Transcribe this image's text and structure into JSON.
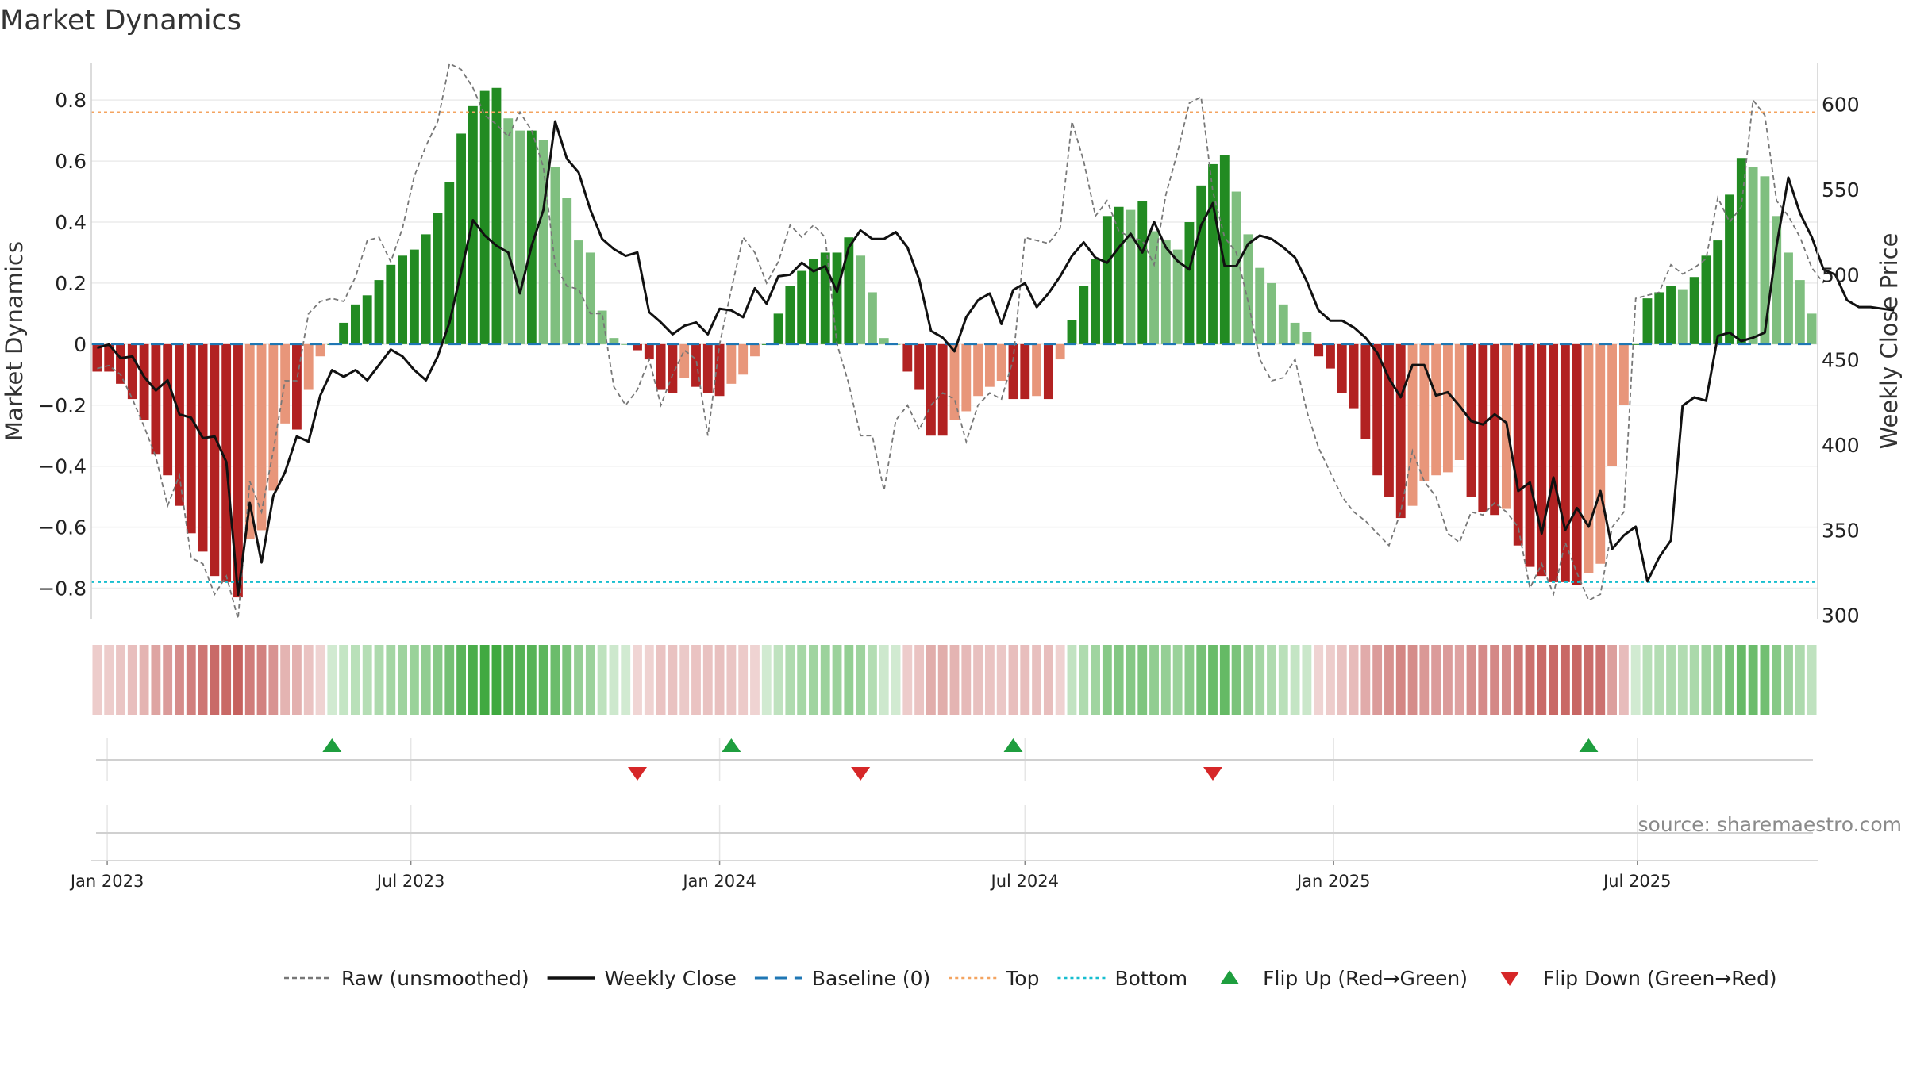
{
  "chart_data": {
    "type": "bar",
    "title": "Market Dynamics",
    "ylabel": "Market Dynamics",
    "y2label": "Weekly Close Price",
    "ylim": [
      -0.9,
      0.92
    ],
    "y2lim": [
      298,
      624
    ],
    "yticks": [
      -0.8,
      -0.6,
      -0.4,
      -0.2,
      0,
      0.2,
      0.4,
      0.6,
      0.8
    ],
    "yticklabels": [
      "−0.8",
      "−0.6",
      "−0.4",
      "−0.2",
      "0",
      "0.2",
      "0.4",
      "0.6",
      "0.8"
    ],
    "y2ticks": [
      300,
      350,
      400,
      450,
      500,
      550,
      600
    ],
    "y2ticklabels": [
      "300",
      "350",
      "400",
      "450",
      "500",
      "550",
      "600"
    ],
    "x_start": "2022-12-26",
    "x_step_days": 7,
    "xticks": [
      "2023-01-01",
      "2023-07-01",
      "2024-01-01",
      "2024-07-01",
      "2025-01-01",
      "2025-07-01"
    ],
    "xticklabels": [
      "Jan 2023",
      "Jul 2023",
      "Jan 2024",
      "Jul 2024",
      "Jan 2025",
      "Jul 2025"
    ],
    "grid": true,
    "legend_position": "bottom-center",
    "baseline": 0,
    "top_level": 0.76,
    "bottom_level": -0.78,
    "colors": {
      "red_dark": "#b22222",
      "red_light": "#e8967a",
      "green_dark": "#228b22",
      "green_light": "#7fbf7f",
      "close": "#111111",
      "raw": "#777777",
      "baseline": "#1f77b4",
      "top": "#f4a460",
      "bottom": "#17becf",
      "flip_up": "#1e9e3e",
      "flip_down": "#d62728",
      "regime_red": "#c0504d",
      "regime_green": "#2ca02c"
    },
    "series": [
      {
        "name": "Market Dynamics",
        "values": [
          -0.09,
          -0.09,
          -0.13,
          -0.18,
          -0.25,
          -0.36,
          -0.43,
          -0.53,
          -0.62,
          -0.68,
          -0.76,
          -0.78,
          -0.83,
          -0.64,
          -0.61,
          -0.48,
          -0.26,
          -0.28,
          -0.15,
          -0.04,
          0.0,
          0.07,
          0.13,
          0.16,
          0.21,
          0.26,
          0.29,
          0.31,
          0.36,
          0.43,
          0.53,
          0.69,
          0.78,
          0.83,
          0.84,
          0.74,
          0.7,
          0.7,
          0.67,
          0.58,
          0.48,
          0.34,
          0.3,
          0.11,
          0.02,
          0.0,
          -0.02,
          -0.05,
          -0.15,
          -0.16,
          -0.11,
          -0.14,
          -0.16,
          -0.17,
          -0.13,
          -0.1,
          -0.04,
          0.0,
          0.1,
          0.19,
          0.24,
          0.28,
          0.3,
          0.3,
          0.35,
          0.29,
          0.17,
          0.02,
          0.0,
          -0.09,
          -0.15,
          -0.3,
          -0.3,
          -0.25,
          -0.22,
          -0.17,
          -0.14,
          -0.12,
          -0.18,
          -0.18,
          -0.17,
          -0.18,
          -0.05,
          0.08,
          0.19,
          0.28,
          0.42,
          0.45,
          0.44,
          0.47,
          0.37,
          0.34,
          0.31,
          0.4,
          0.52,
          0.59,
          0.62,
          0.5,
          0.36,
          0.25,
          0.2,
          0.13,
          0.07,
          0.04,
          -0.04,
          -0.08,
          -0.16,
          -0.21,
          -0.31,
          -0.43,
          -0.5,
          -0.57,
          -0.53,
          -0.45,
          -0.43,
          -0.42,
          -0.38,
          -0.5,
          -0.55,
          -0.56,
          -0.54,
          -0.66,
          -0.73,
          -0.76,
          -0.78,
          -0.78,
          -0.79,
          -0.75,
          -0.72,
          -0.4,
          -0.2,
          0.0,
          0.15,
          0.17,
          0.19,
          0.18,
          0.22,
          0.29,
          0.34,
          0.49,
          0.61,
          0.58,
          0.55,
          0.42,
          0.3,
          0.21,
          0.1
        ]
      },
      {
        "name": "Raw (unsmoothed)",
        "values": [
          -0.08,
          -0.07,
          -0.1,
          -0.18,
          -0.27,
          -0.37,
          -0.53,
          -0.43,
          -0.7,
          -0.72,
          -0.82,
          -0.76,
          -0.9,
          -0.45,
          -0.55,
          -0.35,
          -0.12,
          -0.12,
          0.1,
          0.14,
          0.15,
          0.14,
          0.22,
          0.34,
          0.35,
          0.27,
          0.38,
          0.55,
          0.65,
          0.73,
          0.92,
          0.9,
          0.84,
          0.75,
          0.72,
          0.68,
          0.76,
          0.7,
          0.58,
          0.26,
          0.19,
          0.18,
          0.1,
          0.1,
          -0.14,
          -0.2,
          -0.15,
          -0.05,
          -0.2,
          -0.1,
          -0.02,
          -0.05,
          -0.3,
          0.0,
          0.18,
          0.35,
          0.3,
          0.2,
          0.27,
          0.39,
          0.35,
          0.39,
          0.35,
          0.0,
          -0.13,
          -0.3,
          -0.3,
          -0.48,
          -0.25,
          -0.2,
          -0.28,
          -0.2,
          -0.16,
          -0.18,
          -0.32,
          -0.2,
          -0.16,
          -0.18,
          -0.05,
          0.35,
          0.34,
          0.33,
          0.38,
          0.73,
          0.6,
          0.42,
          0.47,
          0.37,
          0.35,
          0.34,
          0.26,
          0.49,
          0.63,
          0.79,
          0.81,
          0.5,
          0.35,
          0.3,
          0.14,
          -0.05,
          -0.12,
          -0.11,
          -0.05,
          -0.22,
          -0.34,
          -0.42,
          -0.5,
          -0.55,
          -0.58,
          -0.62,
          -0.66,
          -0.55,
          -0.35,
          -0.45,
          -0.5,
          -0.62,
          -0.65,
          -0.55,
          -0.56,
          -0.52,
          -0.55,
          -0.6,
          -0.8,
          -0.72,
          -0.82,
          -0.65,
          -0.75,
          -0.84,
          -0.82,
          -0.6,
          -0.55,
          0.15,
          0.16,
          0.17,
          0.26,
          0.23,
          0.25,
          0.28,
          0.48,
          0.4,
          0.45,
          0.8,
          0.75,
          0.47,
          0.42,
          0.35,
          0.25,
          0.2
        ]
      },
      {
        "name": "Weekly Close",
        "values": [
          457,
          459,
          451,
          452,
          440,
          432,
          438,
          418,
          416,
          404,
          405,
          390,
          312,
          366,
          331,
          370,
          384,
          405,
          402,
          429,
          444,
          440,
          444,
          438,
          447,
          456,
          452,
          444,
          438,
          452,
          472,
          502,
          532,
          523,
          517,
          513,
          489,
          517,
          538,
          590,
          568,
          560,
          538,
          521,
          515,
          511,
          513,
          478,
          472,
          465,
          470,
          472,
          465,
          480,
          479,
          475,
          492,
          483,
          499,
          500,
          507,
          502,
          505,
          490,
          516,
          526,
          521,
          521,
          525,
          516,
          497,
          467,
          463,
          455,
          475,
          485,
          489,
          471,
          491,
          495,
          481,
          489,
          499,
          511,
          519,
          510,
          507,
          516,
          524,
          513,
          531,
          516,
          508,
          503,
          529,
          542,
          505,
          505,
          518,
          523,
          521,
          516,
          510,
          496,
          479,
          473,
          473,
          469,
          463,
          454,
          439,
          428,
          447,
          447,
          429,
          431,
          423,
          414,
          412,
          418,
          413,
          373,
          378,
          348,
          381,
          350,
          363,
          352,
          373,
          339,
          347,
          352,
          320,
          334,
          344,
          423,
          428,
          426,
          464,
          466,
          461,
          463,
          466,
          517,
          557,
          536,
          522,
          503,
          500,
          485,
          481,
          481,
          480,
          479
        ]
      }
    ],
    "flip_up_dates": [
      "2023-05-15",
      "2024-01-08",
      "2024-06-24",
      "2025-06-02"
    ],
    "flip_down_dates": [
      "2023-11-13",
      "2024-03-25",
      "2024-10-21"
    ],
    "source_note": "source: sharemaestro.com",
    "legend": [
      {
        "label": "Raw (unsmoothed)",
        "kind": "line-dashed",
        "color": "#777777"
      },
      {
        "label": "Weekly Close",
        "kind": "line-solid",
        "color": "#111111"
      },
      {
        "label": "Baseline (0)",
        "kind": "line-longdash",
        "color": "#1f77b4"
      },
      {
        "label": "Top",
        "kind": "line-dotted",
        "color": "#f4a460"
      },
      {
        "label": "Bottom",
        "kind": "line-dotted",
        "color": "#17becf"
      },
      {
        "label": "Flip Up (Red→Green)",
        "kind": "marker-up",
        "color": "#1e9e3e"
      },
      {
        "label": "Flip Down (Green→Red)",
        "kind": "marker-down",
        "color": "#d62728"
      }
    ]
  }
}
